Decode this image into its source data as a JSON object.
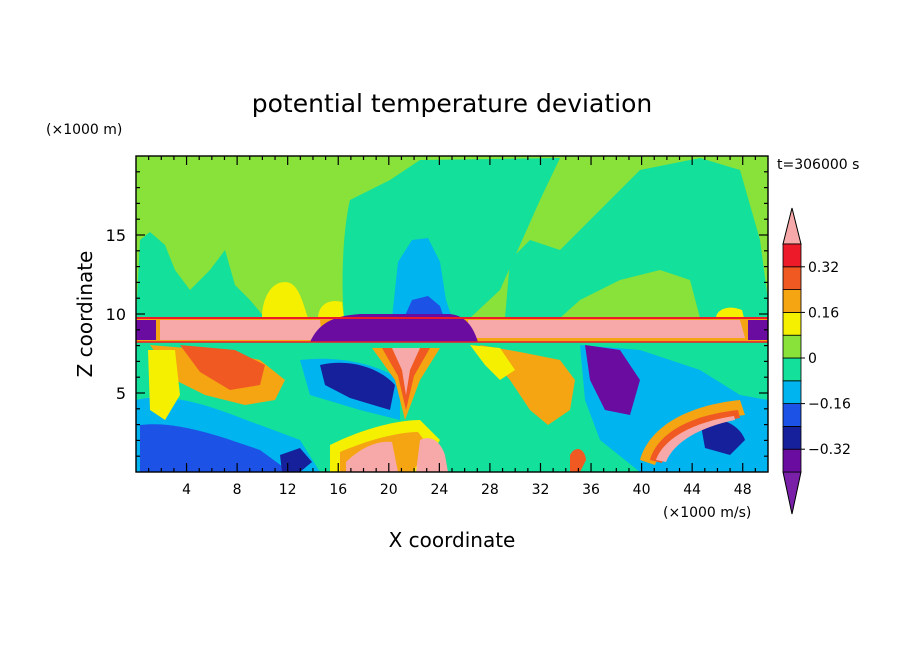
{
  "chart_data": {
    "type": "heatmap",
    "title": "potential temperature deviation",
    "xlabel": "X coordinate",
    "ylabel": "Z coordinate",
    "x_unit": "(×1000 m/s)",
    "y_unit": "(×1000 m)",
    "time_label": "t=306000 s",
    "xlim": [
      0,
      50
    ],
    "ylim": [
      0,
      20
    ],
    "x_ticks": [
      4,
      8,
      12,
      16,
      20,
      24,
      28,
      32,
      36,
      40,
      44,
      48
    ],
    "y_ticks": [
      5,
      10,
      15
    ],
    "colorbar_ticks": [
      "0.32",
      "0.16",
      "0",
      "−0.16",
      "−0.32"
    ],
    "colorbar_levels": [
      -0.4,
      -0.32,
      -0.24,
      -0.16,
      -0.08,
      0,
      0.08,
      0.16,
      0.24,
      0.32,
      0.4
    ],
    "colorbar_colors": [
      "#7a1fa8",
      "#6a0ca0",
      "#17209b",
      "#1c52e6",
      "#00b4f0",
      "#13e09a",
      "#88e23a",
      "#f4f000",
      "#f5a512",
      "#f05a22",
      "#ed1a2a",
      "#f7a8a8"
    ]
  }
}
